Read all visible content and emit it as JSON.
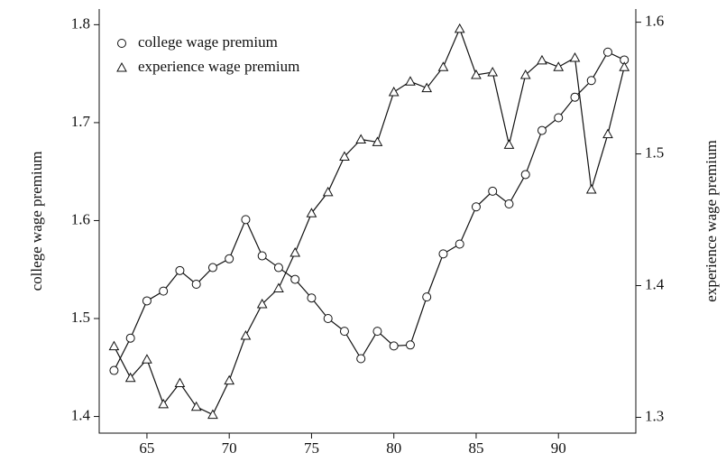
{
  "chart_data": {
    "type": "line",
    "x": [
      63,
      64,
      65,
      66,
      67,
      68,
      69,
      70,
      71,
      72,
      73,
      74,
      75,
      76,
      77,
      78,
      79,
      80,
      81,
      82,
      83,
      84,
      85,
      86,
      87,
      88,
      89,
      90,
      91,
      92,
      93,
      94
    ],
    "series": [
      {
        "name": "college wage premium",
        "marker": "circle",
        "color": "#111111",
        "axis": "y",
        "values": [
          1.447,
          1.48,
          1.518,
          1.528,
          1.549,
          1.535,
          1.552,
          1.561,
          1.601,
          1.564,
          1.552,
          1.54,
          1.521,
          1.5,
          1.487,
          1.459,
          1.487,
          1.472,
          1.473,
          1.522,
          1.566,
          1.576,
          1.614,
          1.63,
          1.617,
          1.647,
          1.692,
          1.705,
          1.726,
          1.743,
          1.772,
          1.764
        ]
      },
      {
        "name": "experience wage premium",
        "marker": "triangle",
        "color": "#111111",
        "axis": "y2",
        "values": [
          1.354,
          1.33,
          1.344,
          1.31,
          1.326,
          1.308,
          1.302,
          1.328,
          1.362,
          1.386,
          1.398,
          1.425,
          1.455,
          1.471,
          1.498,
          1.511,
          1.509,
          1.547,
          1.555,
          1.55,
          1.566,
          1.595,
          1.56,
          1.562,
          1.507,
          1.56,
          1.571,
          1.566,
          1.573,
          1.473,
          1.515,
          1.566
        ]
      }
    ],
    "xlim": [
      62.1,
      94.7
    ],
    "xticks": [
      65,
      70,
      75,
      80,
      85,
      90
    ],
    "ylim": [
      1.383,
      1.816
    ],
    "yticks": [
      1.4,
      1.5,
      1.6,
      1.7,
      1.8
    ],
    "y2lim": [
      1.288,
      1.61
    ],
    "y2ticks": [
      1.3,
      1.4,
      1.5,
      1.6
    ],
    "ylabel": "college wage premium",
    "y2label": "experience wage premium",
    "legend": "upper-left"
  }
}
